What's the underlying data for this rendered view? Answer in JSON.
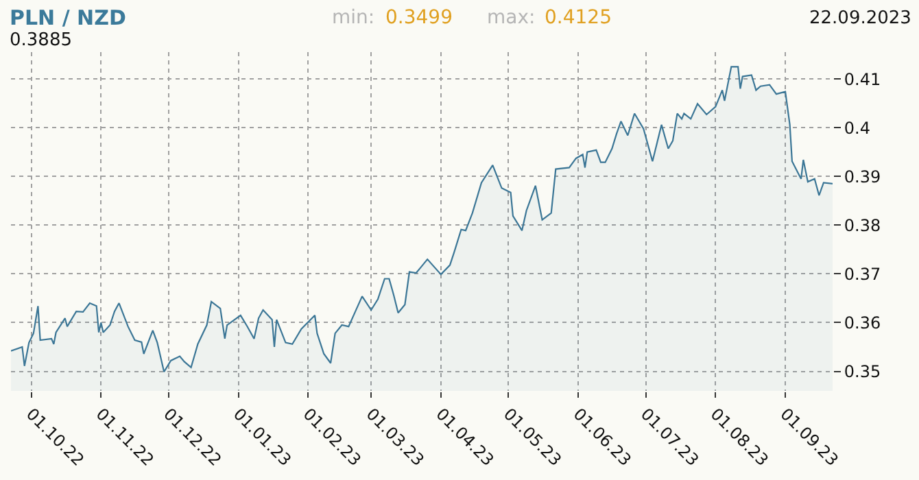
{
  "chart_data": {
    "type": "area",
    "title": "PLN / NZD",
    "annotations": [
      "min:",
      "0.3499",
      "max:",
      "0.4125",
      "22.09.2023",
      "0.3885"
    ],
    "x": [
      "2022-09-22",
      "2022-09-27",
      "2022-09-28",
      "2022-09-30",
      "2022-10-02",
      "2022-10-04",
      "2022-10-05",
      "2022-10-10",
      "2022-10-11",
      "2022-10-12",
      "2022-10-16",
      "2022-10-17",
      "2022-10-21",
      "2022-10-24",
      "2022-10-27",
      "2022-10-30",
      "2022-10-31",
      "2022-11-01",
      "2022-11-02",
      "2022-11-05",
      "2022-11-07",
      "2022-11-09",
      "2022-11-13",
      "2022-11-16",
      "2022-11-19",
      "2022-11-20",
      "2022-11-24",
      "2022-11-26",
      "2022-11-29",
      "2022-12-02",
      "2022-12-06",
      "2022-12-08",
      "2022-12-11",
      "2022-12-14",
      "2022-12-18",
      "2022-12-20",
      "2022-12-24",
      "2022-12-26",
      "2022-12-27",
      "2023-01-02",
      "2023-01-05",
      "2023-01-08",
      "2023-01-10",
      "2023-01-12",
      "2023-01-16",
      "2023-01-17",
      "2023-01-18",
      "2023-01-22",
      "2023-01-25",
      "2023-01-29",
      "2023-02-04",
      "2023-02-05",
      "2023-02-08",
      "2023-02-11",
      "2023-02-13",
      "2023-02-16",
      "2023-02-19",
      "2023-02-22",
      "2023-02-25",
      "2023-03-01",
      "2023-03-04",
      "2023-03-07",
      "2023-03-09",
      "2023-03-11",
      "2023-03-13",
      "2023-03-16",
      "2023-03-18",
      "2023-03-21",
      "2023-03-23",
      "2023-03-26",
      "2023-04-01",
      "2023-04-05",
      "2023-04-07",
      "2023-04-10",
      "2023-04-12",
      "2023-04-15",
      "2023-04-19",
      "2023-04-24",
      "2023-04-28",
      "2023-05-02",
      "2023-05-03",
      "2023-05-07",
      "2023-05-09",
      "2023-05-13",
      "2023-05-16",
      "2023-05-20",
      "2023-05-22",
      "2023-05-28",
      "2023-05-31",
      "2023-06-03",
      "2023-06-04",
      "2023-06-05",
      "2023-06-09",
      "2023-06-11",
      "2023-06-13",
      "2023-06-16",
      "2023-06-18",
      "2023-06-20",
      "2023-06-23",
      "2023-06-26",
      "2023-06-30",
      "2023-07-04",
      "2023-07-08",
      "2023-07-11",
      "2023-07-13",
      "2023-07-15",
      "2023-07-17",
      "2023-07-18",
      "2023-07-21",
      "2023-07-24",
      "2023-07-28",
      "2023-08-01",
      "2023-08-04",
      "2023-08-05",
      "2023-08-08",
      "2023-08-11",
      "2023-08-12",
      "2023-08-13",
      "2023-08-17",
      "2023-08-19",
      "2023-08-21",
      "2023-08-25",
      "2023-08-28",
      "2023-09-01",
      "2023-09-03",
      "2023-09-04",
      "2023-09-08",
      "2023-09-09",
      "2023-09-11",
      "2023-09-14",
      "2023-09-16",
      "2023-09-18",
      "2023-09-22"
    ],
    "series": [
      {
        "color": "#3b7696",
        "values": [
          0.3542,
          0.355,
          0.3511,
          0.3559,
          0.3578,
          0.3634,
          0.3564,
          0.3567,
          0.3556,
          0.358,
          0.3609,
          0.3592,
          0.3623,
          0.3622,
          0.364,
          0.3634,
          0.358,
          0.36,
          0.358,
          0.3595,
          0.3623,
          0.364,
          0.3592,
          0.3564,
          0.356,
          0.3536,
          0.3584,
          0.3559,
          0.3499,
          0.3522,
          0.3531,
          0.352,
          0.3508,
          0.3556,
          0.3595,
          0.3643,
          0.3629,
          0.3567,
          0.3595,
          0.3615,
          0.3592,
          0.3567,
          0.3609,
          0.3626,
          0.3606,
          0.355,
          0.3606,
          0.3559,
          0.3556,
          0.3587,
          0.3615,
          0.3578,
          0.3536,
          0.3517,
          0.3578,
          0.3595,
          0.3592,
          0.3623,
          0.3654,
          0.3626,
          0.3648,
          0.369,
          0.369,
          0.3657,
          0.362,
          0.3637,
          0.3704,
          0.3702,
          0.3713,
          0.373,
          0.3699,
          0.3718,
          0.3746,
          0.3791,
          0.3789,
          0.3825,
          0.3887,
          0.3923,
          0.3876,
          0.3867,
          0.3819,
          0.3789,
          0.383,
          0.3881,
          0.3811,
          0.3825,
          0.3915,
          0.3918,
          0.3937,
          0.3945,
          0.3918,
          0.395,
          0.3954,
          0.3929,
          0.3929,
          0.3957,
          0.3987,
          0.4013,
          0.3984,
          0.4029,
          0.3998,
          0.3931,
          0.4006,
          0.3957,
          0.3973,
          0.4029,
          0.4018,
          0.4029,
          0.4018,
          0.4049,
          0.4027,
          0.4043,
          0.4077,
          0.4055,
          0.4125,
          0.4125,
          0.408,
          0.4105,
          0.4108,
          0.4077,
          0.4085,
          0.4088,
          0.4069,
          0.4074,
          0.4006,
          0.3931,
          0.3895,
          0.3934,
          0.3889,
          0.3895,
          0.3861,
          0.3887,
          0.3885
        ]
      }
    ],
    "xlim": [
      "2022-09-22",
      "2023-09-22"
    ],
    "xticks": [
      {
        "value": "2022-10-01",
        "label": "01.10.22"
      },
      {
        "value": "2022-11-01",
        "label": "01.11.22"
      },
      {
        "value": "2022-12-01",
        "label": "01.12.22"
      },
      {
        "value": "2023-01-01",
        "label": "01.01.23"
      },
      {
        "value": "2023-02-01",
        "label": "01.02.23"
      },
      {
        "value": "2023-03-01",
        "label": "01.03.23"
      },
      {
        "value": "2023-04-01",
        "label": "01.04.23"
      },
      {
        "value": "2023-05-01",
        "label": "01.05.23"
      },
      {
        "value": "2023-06-01",
        "label": "01.06.23"
      },
      {
        "value": "2023-07-01",
        "label": "01.07.23"
      },
      {
        "value": "2023-08-01",
        "label": "01.08.23"
      },
      {
        "value": "2023-09-01",
        "label": "01.09.23"
      }
    ],
    "ylim": [
      0.346,
      0.4155
    ],
    "yticks": [
      0.35,
      0.36,
      0.37,
      0.38,
      0.39,
      0.4,
      0.41
    ],
    "grid": true,
    "legend": false,
    "marker": "none",
    "line_style": "solid"
  }
}
